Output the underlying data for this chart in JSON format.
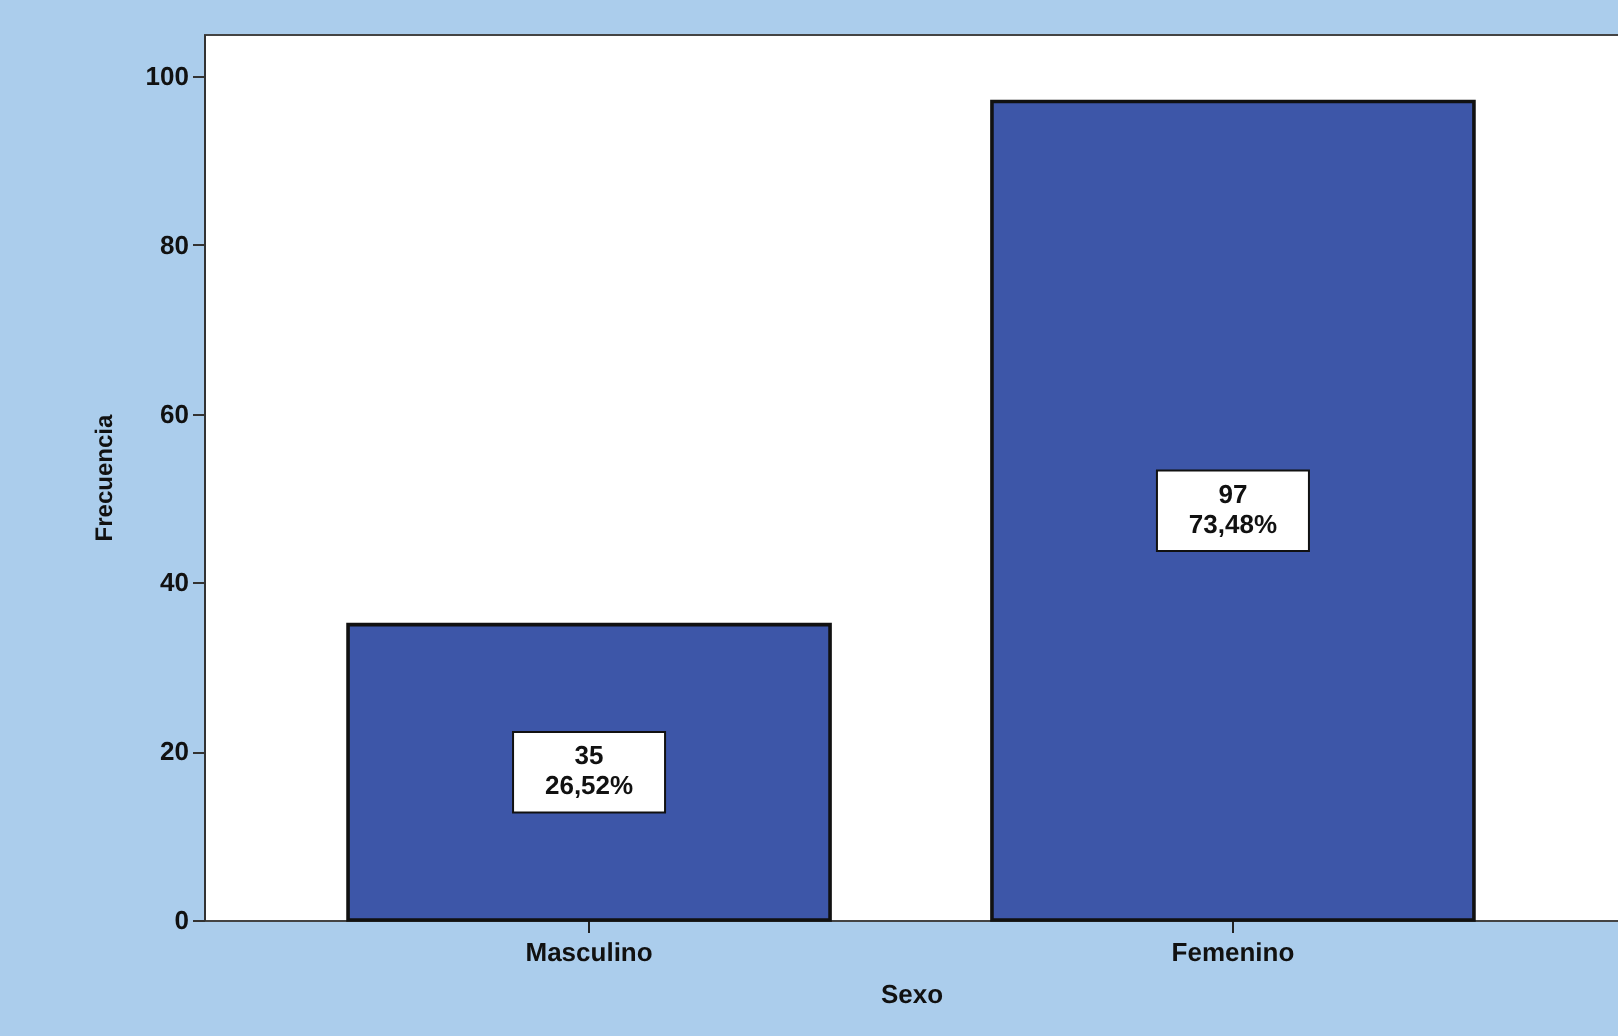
{
  "chart_data": {
    "type": "bar",
    "xlabel": "Sexo",
    "ylabel": "Frecuencia",
    "categories": [
      "Masculino",
      "Femenino"
    ],
    "values": [
      35,
      97
    ],
    "color": "#3d56a8",
    "value_labels": [
      "35\n26,52%",
      "97\n73,48%"
    ],
    "ylim": [
      0,
      105
    ],
    "yticks": [
      0,
      20,
      40,
      60,
      80,
      100
    ],
    "grid": false
  }
}
